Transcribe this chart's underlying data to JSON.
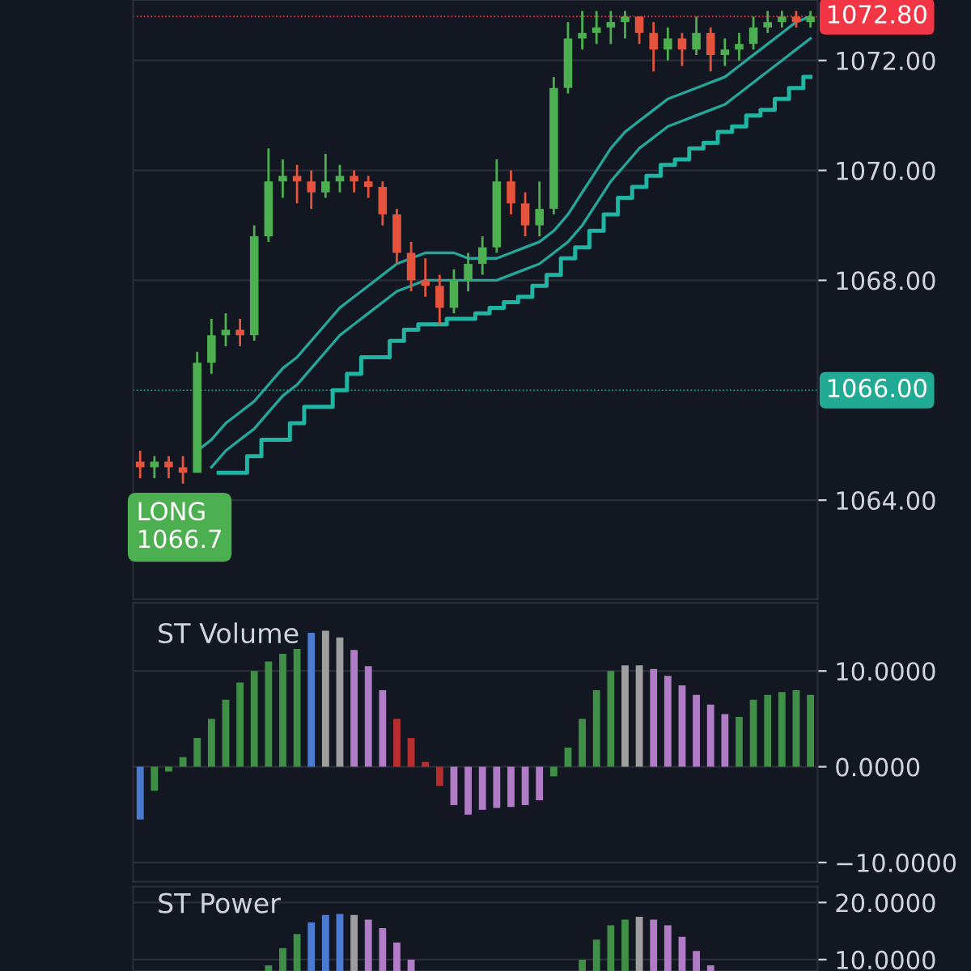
{
  "chart_data": [
    {
      "type": "candlestick",
      "categories": [
        null,
        null,
        null,
        null,
        null,
        null,
        null,
        null,
        null,
        null,
        null,
        null,
        null,
        null,
        null,
        null,
        null,
        null,
        null,
        null,
        null,
        null,
        null,
        null,
        null,
        null,
        null,
        null,
        null,
        null,
        null,
        null,
        null,
        null,
        null,
        null,
        null,
        null,
        null,
        null,
        null,
        null,
        null,
        null,
        null,
        null,
        null,
        null
      ],
      "ohlc": [
        [
          1064.7,
          1064.9,
          1064.4,
          1064.6
        ],
        [
          1064.6,
          1064.8,
          1064.4,
          1064.7
        ],
        [
          1064.7,
          1064.8,
          1064.4,
          1064.6
        ],
        [
          1064.6,
          1064.8,
          1064.3,
          1064.5
        ],
        [
          1064.5,
          1066.7,
          1064.5,
          1066.5
        ],
        [
          1066.5,
          1067.3,
          1066.3,
          1067.0
        ],
        [
          1067.0,
          1067.4,
          1066.8,
          1067.1
        ],
        [
          1067.1,
          1067.3,
          1066.8,
          1067.0
        ],
        [
          1067.0,
          1069.0,
          1066.9,
          1068.8
        ],
        [
          1068.8,
          1070.4,
          1068.7,
          1069.8
        ],
        [
          1069.8,
          1070.2,
          1069.5,
          1069.9
        ],
        [
          1069.9,
          1070.1,
          1069.4,
          1069.8
        ],
        [
          1069.8,
          1070.0,
          1069.3,
          1069.6
        ],
        [
          1069.6,
          1070.3,
          1069.5,
          1069.8
        ],
        [
          1069.8,
          1070.1,
          1069.6,
          1069.9
        ],
        [
          1069.9,
          1070.0,
          1069.6,
          1069.8
        ],
        [
          1069.8,
          1069.9,
          1069.5,
          1069.7
        ],
        [
          1069.7,
          1069.8,
          1069.0,
          1069.2
        ],
        [
          1069.2,
          1069.3,
          1068.3,
          1068.5
        ],
        [
          1068.5,
          1068.7,
          1067.8,
          1068.0
        ],
        [
          1068.0,
          1068.4,
          1067.7,
          1067.9
        ],
        [
          1067.9,
          1068.1,
          1067.2,
          1067.5
        ],
        [
          1067.5,
          1068.2,
          1067.4,
          1068.0
        ],
        [
          1068.0,
          1068.5,
          1067.8,
          1068.3
        ],
        [
          1068.3,
          1068.8,
          1068.1,
          1068.6
        ],
        [
          1068.6,
          1070.2,
          1068.5,
          1069.8
        ],
        [
          1069.8,
          1070.0,
          1069.2,
          1069.4
        ],
        [
          1069.4,
          1069.6,
          1068.8,
          1069.0
        ],
        [
          1069.0,
          1069.8,
          1068.8,
          1069.3
        ],
        [
          1069.3,
          1071.7,
          1069.2,
          1071.5
        ],
        [
          1071.5,
          1072.7,
          1071.4,
          1072.4
        ],
        [
          1072.4,
          1072.9,
          1072.2,
          1072.5
        ],
        [
          1072.5,
          1072.9,
          1072.3,
          1072.6
        ],
        [
          1072.6,
          1072.9,
          1072.3,
          1072.7
        ],
        [
          1072.7,
          1072.9,
          1072.4,
          1072.8
        ],
        [
          1072.8,
          1072.8,
          1072.3,
          1072.5
        ],
        [
          1072.5,
          1072.7,
          1071.8,
          1072.2
        ],
        [
          1072.2,
          1072.6,
          1072.0,
          1072.4
        ],
        [
          1072.4,
          1072.5,
          1071.9,
          1072.2
        ],
        [
          1072.2,
          1072.8,
          1072.1,
          1072.5
        ],
        [
          1072.5,
          1072.6,
          1071.8,
          1072.1
        ],
        [
          1072.1,
          1072.4,
          1071.9,
          1072.2
        ],
        [
          1072.2,
          1072.5,
          1072.0,
          1072.3
        ],
        [
          1072.3,
          1072.8,
          1072.2,
          1072.6
        ],
        [
          1072.6,
          1072.9,
          1072.5,
          1072.7
        ],
        [
          1072.7,
          1072.9,
          1072.6,
          1072.8
        ],
        [
          1072.8,
          1072.9,
          1072.6,
          1072.7
        ],
        [
          1072.7,
          1072.9,
          1072.6,
          1072.8
        ]
      ],
      "series": [
        {
          "type": "line",
          "color": "#26a69a",
          "values": [
            null,
            null,
            null,
            null,
            1064.9,
            1065.1,
            1065.4,
            1065.6,
            1065.8,
            1066.1,
            1066.4,
            1066.6,
            1066.9,
            1067.2,
            1067.5,
            1067.7,
            1067.9,
            1068.1,
            1068.3,
            1068.4,
            1068.5,
            1068.5,
            1068.5,
            1068.4,
            1068.4,
            1068.4,
            1068.5,
            1068.6,
            1068.7,
            1068.9,
            1069.2,
            1069.6,
            1070.0,
            1070.4,
            1070.7,
            1070.9,
            1071.1,
            1071.3,
            1071.4,
            1071.5,
            1071.6,
            1071.7,
            1071.9,
            1072.1,
            1072.3,
            1072.5,
            1072.7,
            1072.8
          ]
        },
        {
          "type": "line",
          "color": "#26a69a",
          "values": [
            null,
            null,
            null,
            null,
            null,
            1064.6,
            1064.9,
            1065.1,
            1065.3,
            1065.6,
            1065.9,
            1066.1,
            1066.4,
            1066.7,
            1067.0,
            1067.2,
            1067.4,
            1067.6,
            1067.8,
            1067.9,
            1068.0,
            1068.0,
            1068.0,
            1068.0,
            1068.0,
            1068.0,
            1068.1,
            1068.2,
            1068.3,
            1068.5,
            1068.7,
            1069.0,
            1069.4,
            1069.8,
            1070.1,
            1070.4,
            1070.6,
            1070.8,
            1070.9,
            1071.0,
            1071.1,
            1071.2,
            1071.4,
            1071.6,
            1071.8,
            1072.0,
            1072.2,
            1072.4
          ]
        },
        {
          "type": "step",
          "color": "#1fb5a2",
          "values": [
            null,
            null,
            null,
            null,
            null,
            null,
            1064.5,
            1064.5,
            1064.8,
            1065.1,
            1065.1,
            1065.4,
            1065.7,
            1065.7,
            1066.0,
            1066.3,
            1066.6,
            1066.6,
            1066.9,
            1067.1,
            1067.2,
            1067.2,
            1067.3,
            1067.3,
            1067.4,
            1067.5,
            1067.6,
            1067.7,
            1067.9,
            1068.1,
            1068.4,
            1068.6,
            1068.9,
            1069.2,
            1069.5,
            1069.7,
            1069.9,
            1070.1,
            1070.2,
            1070.4,
            1070.5,
            1070.7,
            1070.8,
            1071.0,
            1071.1,
            1071.3,
            1071.5,
            1071.7
          ]
        }
      ],
      "ylim": [
        1062.2,
        1073.1
      ],
      "yticks": [
        {
          "value": 1064,
          "label": "1064.00"
        },
        {
          "value": 1068,
          "label": "1068.00"
        },
        {
          "value": 1070,
          "label": "1070.00"
        },
        {
          "value": 1072,
          "label": "1072.00"
        }
      ],
      "ref_lines": [
        {
          "axis": "y",
          "value": 1072.8,
          "label": "1072.80",
          "color": "#f23645"
        },
        {
          "axis": "y",
          "value": 1066,
          "label": "1066.00",
          "color": "#22ab94"
        }
      ],
      "annotations": [
        "LONG\n1066.7"
      ],
      "grid": "y",
      "tick_labels": "y"
    },
    {
      "type": "bar",
      "title": "ST Volume",
      "categories": [
        null,
        null,
        null,
        null,
        null,
        null,
        null,
        null,
        null,
        null,
        null,
        null,
        null,
        null,
        null,
        null,
        null,
        null,
        null,
        null,
        null,
        null,
        null,
        null,
        null,
        null,
        null,
        null,
        null,
        null,
        null,
        null,
        null,
        null,
        null,
        null,
        null,
        null,
        null,
        null,
        null,
        null,
        null,
        null,
        null,
        null,
        null,
        null
      ],
      "values": [
        -5.5,
        -2.5,
        -0.5,
        1.0,
        3.0,
        5.0,
        7.0,
        8.8,
        10.0,
        11.0,
        11.8,
        12.3,
        14.0,
        14.2,
        13.5,
        12.2,
        10.5,
        8.0,
        5.0,
        3.0,
        0.5,
        -2.0,
        -4.0,
        -5.0,
        -4.5,
        -4.3,
        -4.2,
        -4.0,
        -3.5,
        -1.0,
        2.0,
        5.0,
        8.0,
        10.0,
        10.6,
        10.6,
        10.2,
        9.5,
        8.5,
        7.5,
        6.5,
        5.5,
        5.2,
        7.0,
        7.5,
        7.8,
        8.0,
        7.5
      ],
      "colors": [
        "#4a7bd1",
        "#3f8f46",
        "#3f8f46",
        "#3f8f46",
        "#3f8f46",
        "#3f8f46",
        "#3f8f46",
        "#3f8f46",
        "#3f8f46",
        "#3f8f46",
        "#3f8f46",
        "#3f8f46",
        "#4a7bd1",
        "#9e9e9e",
        "#9e9e9e",
        "#b07cc6",
        "#b07cc6",
        "#b07cc6",
        "#b72e2e",
        "#b72e2e",
        "#b72e2e",
        "#b72e2e",
        "#b07cc6",
        "#b07cc6",
        "#b07cc6",
        "#b07cc6",
        "#b07cc6",
        "#b07cc6",
        "#b07cc6",
        "#3f8f46",
        "#3f8f46",
        "#3f8f46",
        "#3f8f46",
        "#3f8f46",
        "#9e9e9e",
        "#9e9e9e",
        "#b07cc6",
        "#b07cc6",
        "#b07cc6",
        "#b07cc6",
        "#b07cc6",
        "#b07cc6",
        "#3f8f46",
        "#3f8f46",
        "#3f8f46",
        "#3f8f46",
        "#3f8f46",
        "#3f8f46"
      ],
      "ylim": [
        -12,
        17.1
      ],
      "yticks": [
        {
          "value": -10,
          "label": "−10.0000"
        },
        {
          "value": 0,
          "label": "0.0000"
        },
        {
          "value": 10,
          "label": "10.0000"
        }
      ],
      "grid": "y",
      "tick_labels": "y"
    },
    {
      "type": "bar",
      "title": "ST Power",
      "categories": [
        null,
        null,
        null,
        null,
        null,
        null,
        null,
        null,
        null,
        null,
        null,
        null,
        null,
        null,
        null,
        null,
        null,
        null,
        null,
        null,
        null,
        null,
        null,
        null,
        null,
        null,
        null,
        null,
        null,
        null,
        null,
        null,
        null,
        null,
        null,
        null,
        null,
        null,
        null,
        null,
        null,
        null,
        null,
        null,
        null,
        null,
        null,
        null
      ],
      "values": [
        null,
        null,
        null,
        null,
        null,
        null,
        null,
        null,
        null,
        9.0,
        12.0,
        14.5,
        16.5,
        17.8,
        18.0,
        17.8,
        17.0,
        15.5,
        13.0,
        10.0,
        null,
        null,
        null,
        null,
        null,
        null,
        null,
        null,
        null,
        null,
        null,
        10.0,
        13.5,
        16.0,
        17.0,
        17.5,
        17.0,
        16.0,
        14.0,
        11.5,
        9.0,
        null,
        null,
        null,
        null,
        null,
        null,
        null
      ],
      "colors": [
        "#3f8f46",
        "#3f8f46",
        "#3f8f46",
        "#3f8f46",
        "#3f8f46",
        "#3f8f46",
        "#3f8f46",
        "#3f8f46",
        "#3f8f46",
        "#3f8f46",
        "#3f8f46",
        "#3f8f46",
        "#4a7bd1",
        "#4a7bd1",
        "#4a7bd1",
        "#9e9e9e",
        "#b07cc6",
        "#b07cc6",
        "#b07cc6",
        "#b07cc6",
        "#b07cc6",
        "#b07cc6",
        "#b07cc6",
        "#b07cc6",
        "#b07cc6",
        "#b07cc6",
        "#b07cc6",
        "#b07cc6",
        "#b07cc6",
        "#3f8f46",
        "#3f8f46",
        "#3f8f46",
        "#3f8f46",
        "#3f8f46",
        "#3f8f46",
        "#9e9e9e",
        "#b07cc6",
        "#b07cc6",
        "#b07cc6",
        "#b07cc6",
        "#b07cc6",
        "#b07cc6",
        "#3f8f46",
        "#3f8f46",
        "#3f8f46",
        "#3f8f46",
        "#3f8f46",
        "#3f8f46"
      ],
      "ylim": [
        8,
        22.8
      ],
      "yticks": [
        {
          "value": 10,
          "label": "10.0000"
        },
        {
          "value": 20,
          "label": "20.0000"
        }
      ],
      "grid": "y",
      "tick_labels": "y"
    }
  ]
}
